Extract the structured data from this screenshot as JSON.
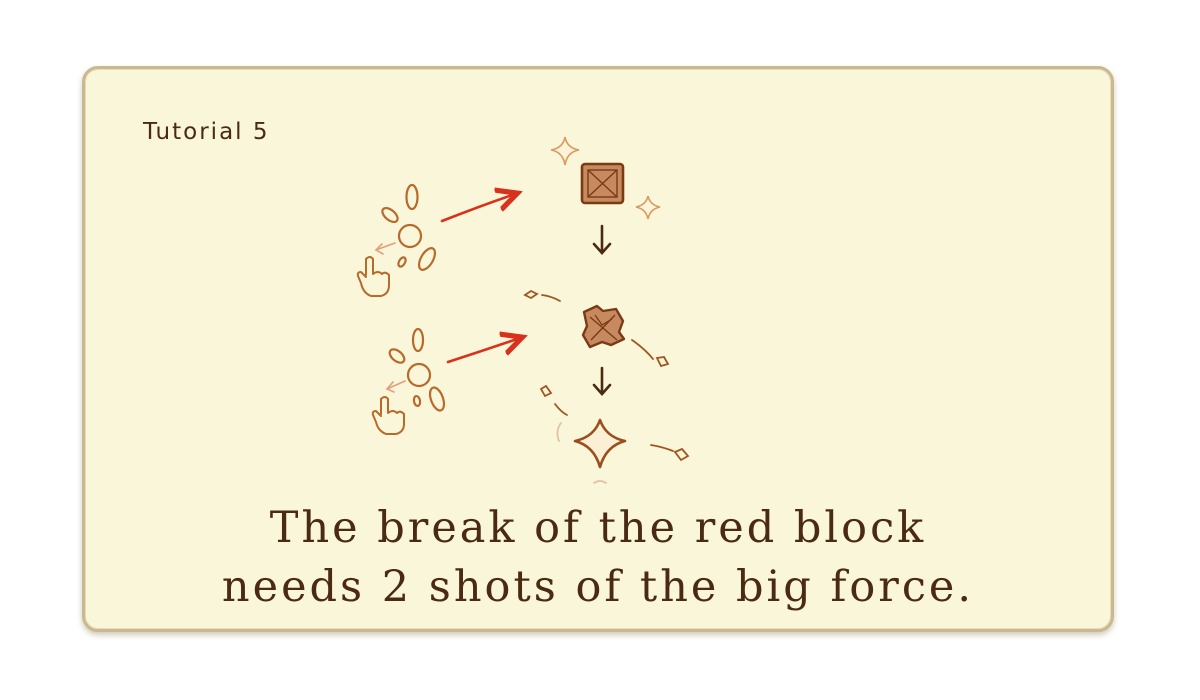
{
  "tutorial": {
    "title": "Tutorial 5",
    "caption_line_1": "The break of the red block",
    "caption_line_2": "needs 2 shots of the big force."
  },
  "colors": {
    "panel_fill": "#faf6d9",
    "panel_border": "#c9b98e",
    "text": "#4a2a12",
    "sketch": "#b86a2a",
    "arrow_red": "#d8321c",
    "block_fill": "#c78a60"
  }
}
